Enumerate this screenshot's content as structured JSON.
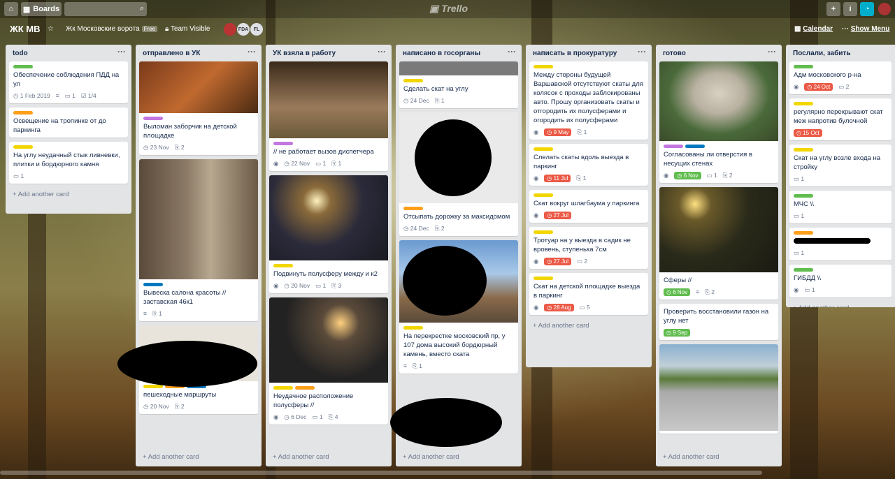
{
  "topbar": {
    "home": "⌂",
    "boards": "Boards",
    "logo": "Trello",
    "add": "+",
    "info": "i",
    "bell": "🔔"
  },
  "board": {
    "title": "ЖК МВ",
    "team": "Жк Московские ворота",
    "free": "Free",
    "visibility": "Team Visible",
    "members": [
      "FDA",
      "FL"
    ],
    "calendar": "Calendar",
    "show_menu": "Show Menu"
  },
  "add_card": "+ Add another card",
  "lists": [
    {
      "name": "todo",
      "cards": [
        {
          "title": "Обеспечение соблюдения ПДД на ул",
          "labels": [
            "#61bd4f"
          ],
          "date": "1 Feb 2019",
          "comments": "1",
          "checklist": "1/4"
        },
        {
          "title": "Освещение на тропинке от до паркинга",
          "labels": [
            "#ff9f1a"
          ]
        },
        {
          "title": "На углу неудачный стык ливневки, плитки и бордюрного камня",
          "labels": [
            "#f2d600"
          ],
          "comments": "1"
        }
      ]
    },
    {
      "name": "отправлено в УК",
      "cards": [
        {
          "title": "Выломан заборчик на детской площадке",
          "labels": [
            "#c377e0"
          ],
          "date": "23 Nov",
          "attachments": "2"
        },
        {
          "title": "Вывеска салона красоты // заставская 46к1",
          "labels": [
            "#0079bf"
          ],
          "attachments": "1"
        },
        {
          "title": "пешеходные маршруты",
          "labels": [
            "#f2d600",
            "#ff9f1a",
            "#0079bf"
          ],
          "date": "20 Nov",
          "attachments": "2"
        }
      ]
    },
    {
      "name": "УК взяла в работу",
      "cards": [
        {
          "title": "// не работает вызов диспетчера",
          "labels": [
            "#c377e0"
          ],
          "date": "22 Nov",
          "comments": "1",
          "attachments": "1"
        },
        {
          "title": "Подвинуть полусферу между и к2",
          "labels": [
            "#f2d600"
          ],
          "date": "20 Nov",
          "comments": "1",
          "attachments": "3"
        },
        {
          "title": "Неудачное расположение полусферы //",
          "labels": [
            "#f2d600",
            "#ff9f1a"
          ],
          "date": "6 Dec",
          "comments": "1",
          "attachments": "4"
        }
      ]
    },
    {
      "name": "написано в госорганы",
      "cards": [
        {
          "title": "Сделать скат на углу",
          "labels": [
            "#f2d600"
          ],
          "date": "24 Dec",
          "attachments": "1"
        },
        {
          "title": "Отсыпать дорожку за максидомом",
          "labels": [
            "#ff9f1a"
          ],
          "date": "24 Dec",
          "attachments": "2"
        },
        {
          "title": "На перекрестке московский пр, у 107 дома высокий бордюрный камень, вместо ската",
          "labels": [
            "#f2d600"
          ],
          "attachments": "1"
        }
      ]
    },
    {
      "name": "написать в прокуратуру",
      "cards": [
        {
          "title": "Между стороны будущей Варшавской отсутствуют скаты для колясок с проходы заблокированы авто. Прошу организовать скаты и отгородить их полусферами и огородить их полусферами",
          "labels": [
            "#f2d600"
          ],
          "due": "9 May",
          "attachments": "1"
        },
        {
          "title": "Слелать скаты вдоль выезда в паркинг",
          "labels": [
            "#f2d600"
          ],
          "due": "11 Jul",
          "attachments": "1"
        },
        {
          "title": "Скат вокруг шлагбаума у паркинга",
          "labels": [
            "#f2d600"
          ],
          "due": "27 Jul"
        },
        {
          "title": "Тротуар на у выезда в садик не вровень, ступенька 7см",
          "labels": [
            "#f2d600"
          ],
          "due": "27 Jul",
          "comments": "2"
        },
        {
          "title": "Скат на детской площадке выезда в паркинг",
          "labels": [
            "#f2d600"
          ],
          "due": "28 Aug",
          "comments": "5"
        }
      ]
    },
    {
      "name": "готово",
      "cards": [
        {
          "title": "Согласованы ли отверстия в несущих стенах",
          "labels": [
            "#c377e0",
            "#0079bf"
          ],
          "due": "6 Nov",
          "comments": "1",
          "attachments": "2"
        },
        {
          "title": "Сферы //",
          "labels": [],
          "due": "6 Nov",
          "attachments": "2"
        },
        {
          "title": "Проверить восстановили газон на углу нет",
          "labels": [],
          "due": "9 Sep"
        }
      ]
    },
    {
      "name": "Послали, забить",
      "cards": [
        {
          "title": "Адм московского р-на",
          "labels": [
            "#61bd4f"
          ],
          "due": "24 Oct",
          "comments": "2"
        },
        {
          "title": "регулярно перекрывают скат меж напротив булочной",
          "labels": [
            "#f2d600"
          ],
          "due": "15 Oct"
        },
        {
          "title": "Скат на углу возле входа на стройку",
          "labels": [
            "#f2d600"
          ],
          "comments": "1"
        },
        {
          "title": "МЧС \\\\",
          "labels": [
            "#61bd4f"
          ],
          "comments": "1"
        },
        {
          "title": "",
          "labels": [
            "#ff9f1a"
          ],
          "comments": "1"
        },
        {
          "title": "ГИБДД \\\\",
          "labels": [
            "#61bd4f"
          ],
          "comments": "1"
        }
      ]
    }
  ]
}
